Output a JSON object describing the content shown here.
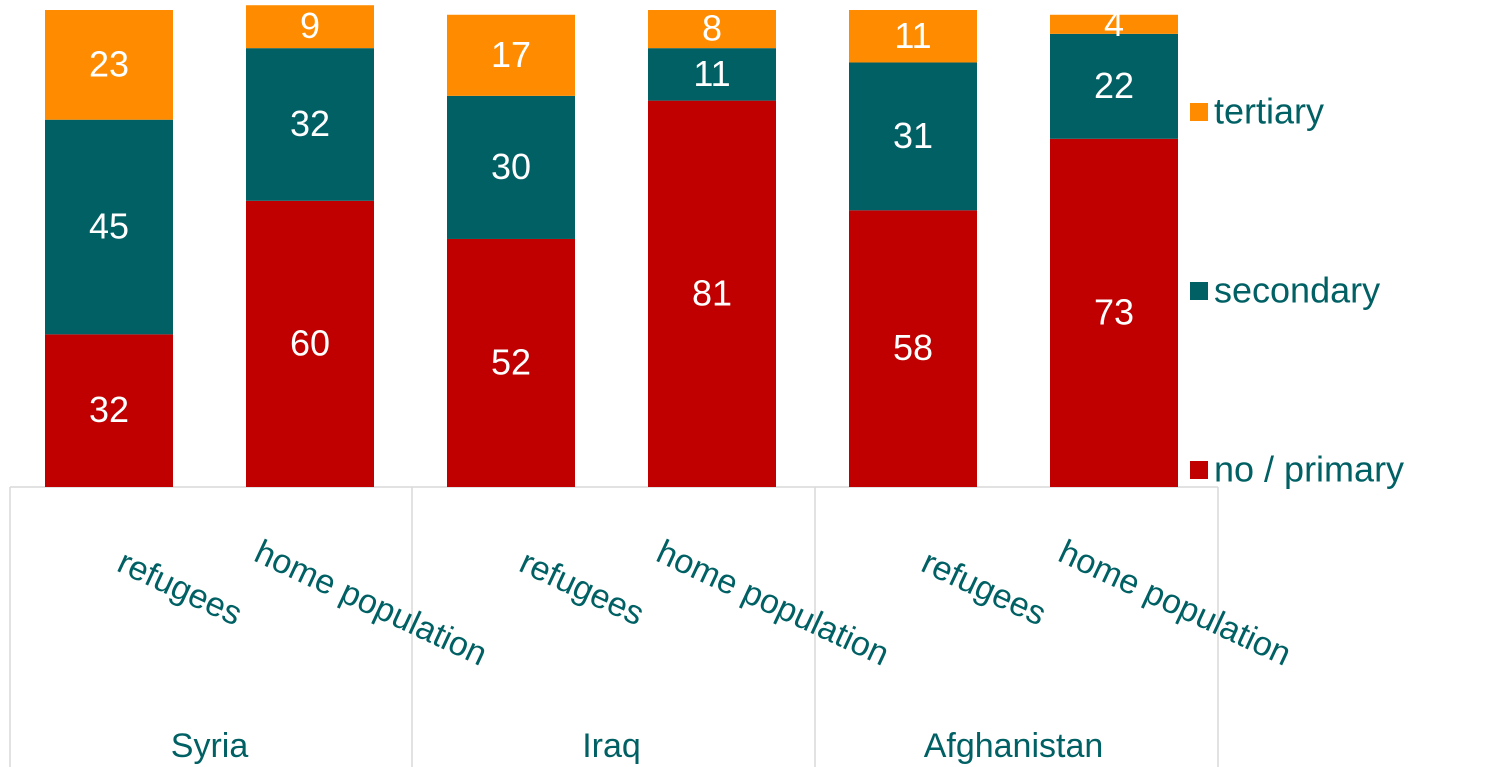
{
  "chart_data": {
    "type": "stacked_bar",
    "categories": [
      "refugees",
      "home population",
      "refugees",
      "home population",
      "refugees",
      "home population"
    ],
    "groups": [
      "Syria",
      "Iraq",
      "Afghanistan"
    ],
    "series": [
      {
        "name": "no / primary",
        "color": "#c00000",
        "values": [
          32,
          60,
          52,
          81,
          58,
          73
        ]
      },
      {
        "name": "secondary",
        "color": "#006064",
        "values": [
          45,
          32,
          30,
          11,
          31,
          22
        ]
      },
      {
        "name": "tertiary",
        "color": "#ff8c00",
        "values": [
          23,
          9,
          17,
          8,
          11,
          4
        ]
      }
    ],
    "ylim": [
      0,
      100
    ],
    "legend": "right"
  }
}
